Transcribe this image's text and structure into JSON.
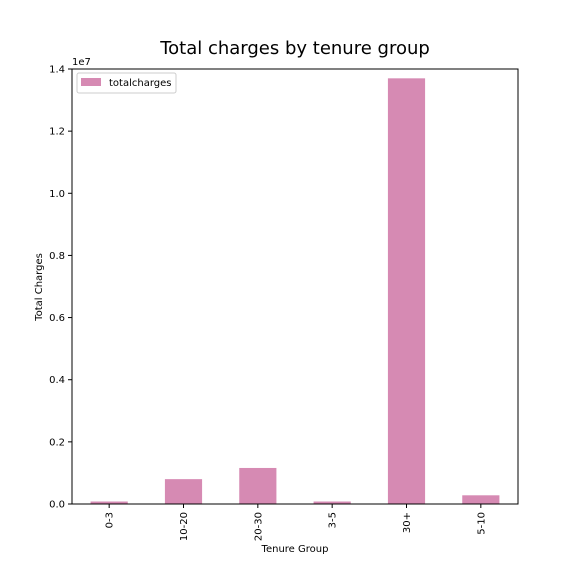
{
  "chart_data": {
    "type": "bar",
    "title": "Total charges by tenure group",
    "xlabel": "Tenure Group",
    "ylabel": "Total Charges",
    "y_offset_label": "1e7",
    "categories": [
      "0-3",
      "10-20",
      "20-30",
      "3-5",
      "30+",
      "5-10"
    ],
    "ylim": [
      0,
      1.4
    ],
    "yticks": [
      "0.0",
      "0.2",
      "0.4",
      "0.6",
      "0.8",
      "1.0",
      "1.2",
      "1.4"
    ],
    "series": [
      {
        "name": "totalcharges",
        "color": "#d68ab3",
        "values": [
          0.008,
          0.08,
          0.116,
          0.008,
          1.37,
          0.028
        ]
      }
    ],
    "legend_position": "top-left",
    "grid": false
  }
}
